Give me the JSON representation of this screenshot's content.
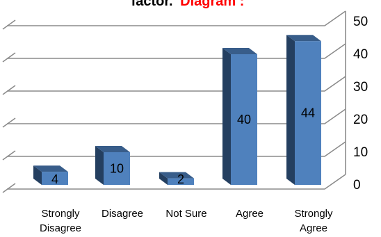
{
  "chart_data": {
    "type": "bar",
    "title_dark": "factor.",
    "title_red": "Diagram :",
    "title_dark_color": "#000000",
    "title_red_color": "#ff0000",
    "categories": [
      [
        "Strongly",
        "Disagree"
      ],
      [
        "Disagree"
      ],
      [
        "Not Sure"
      ],
      [
        "Agree"
      ],
      [
        "Strongly",
        "Agree"
      ]
    ],
    "values": [
      4,
      10,
      2,
      40,
      44
    ],
    "ylim": [
      0,
      50
    ],
    "yticks": [
      0,
      10,
      20,
      30,
      40,
      50
    ],
    "grid": true,
    "style": "3d-column",
    "colors": {
      "bar_front": "#4f81bd",
      "bar_side": "#243f60",
      "bar_top": "#385d8a",
      "grid": "#8c8c8c",
      "wall": "#ffffff"
    }
  }
}
